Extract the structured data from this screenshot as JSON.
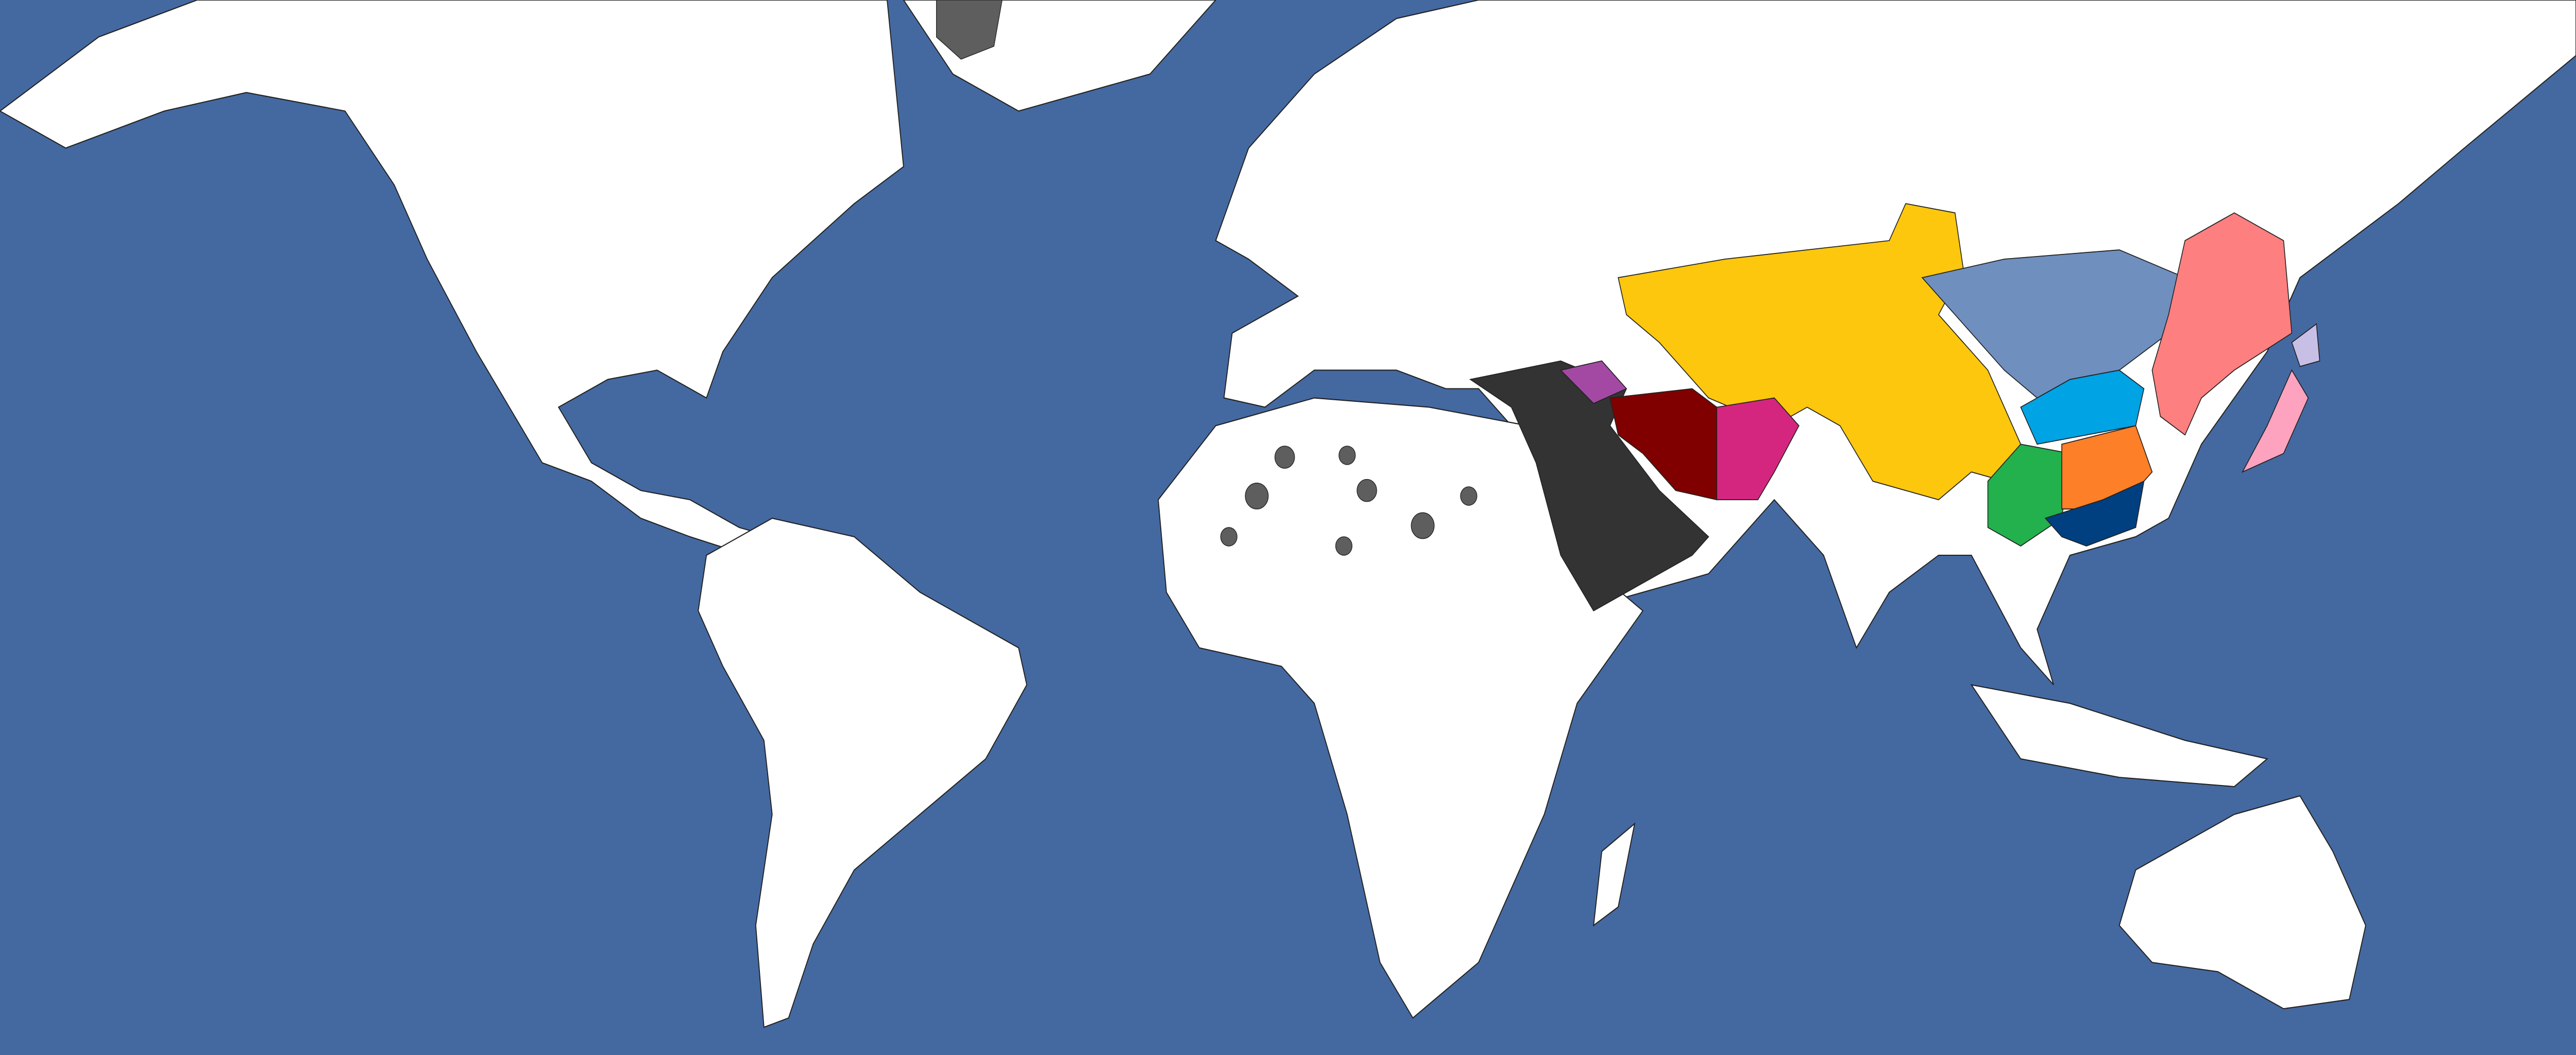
{
  "map": {
    "ocean_color": "#4469a1",
    "land_color": "#ffffff",
    "border_color": "#222222",
    "wasteland_color": "#5e5e5e",
    "colored_regions": [
      {
        "id": "yellow",
        "color": "#fdc70e"
      },
      {
        "id": "slate-blue",
        "color": "#6f8fbe"
      },
      {
        "id": "salmon",
        "color": "#fd7f7f"
      },
      {
        "id": "sky-blue",
        "color": "#00a3e4"
      },
      {
        "id": "green",
        "color": "#22b14c"
      },
      {
        "id": "orange",
        "color": "#fd7f27"
      },
      {
        "id": "navy",
        "color": "#003f80"
      },
      {
        "id": "dark-grey",
        "color": "#333333"
      },
      {
        "id": "purple",
        "color": "#a349a4"
      },
      {
        "id": "dark-red",
        "color": "#800000"
      },
      {
        "id": "magenta",
        "color": "#d4267f"
      },
      {
        "id": "pink",
        "color": "#fda3c0"
      },
      {
        "id": "lavender",
        "color": "#c8bfe7"
      }
    ]
  }
}
